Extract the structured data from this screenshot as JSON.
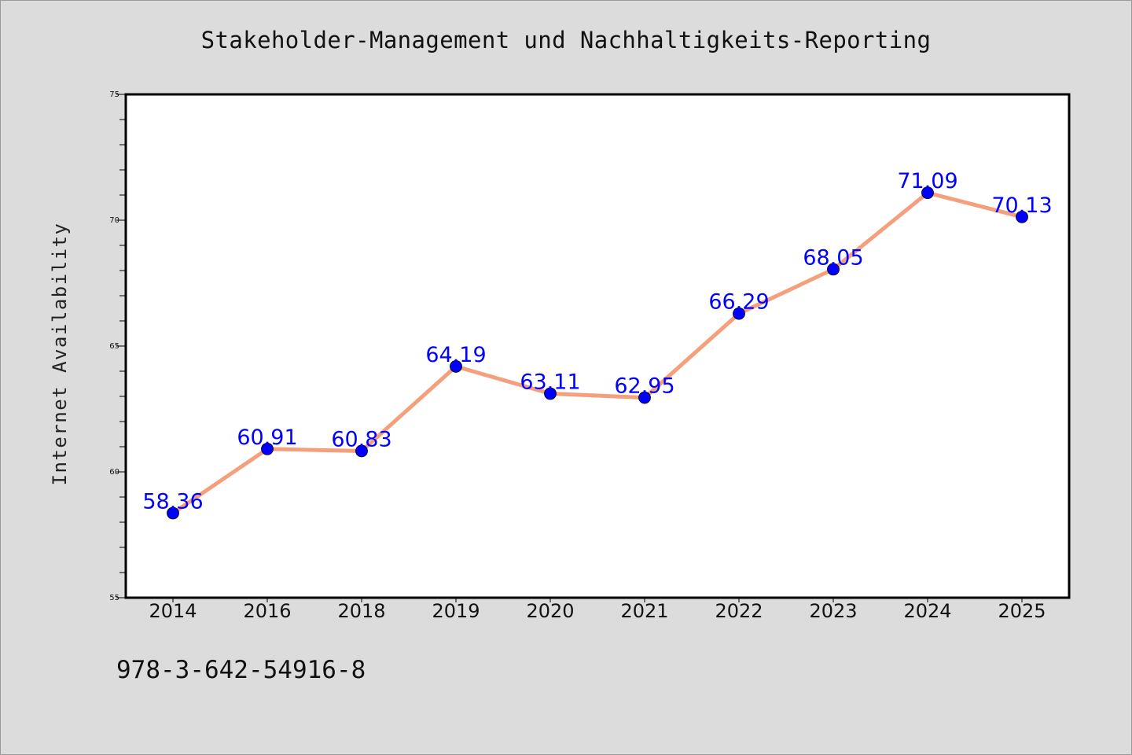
{
  "colors": {
    "background": "#dcdcdc",
    "plot_area": "#ffffff",
    "line": "#f4a07c",
    "marker": "#0000ff",
    "data_label": "#0000ff"
  },
  "isbn": "978-3-642-54916-8",
  "chart_data": {
    "type": "line",
    "title": "Stakeholder-Management und Nachhaltigkeits-Reporting",
    "xlabel": "",
    "ylabel": "Internet Availability",
    "categories": [
      "2014",
      "2016",
      "2018",
      "2019",
      "2020",
      "2021",
      "2022",
      "2023",
      "2024",
      "2025"
    ],
    "series": [
      {
        "values": [
          58.36,
          60.91,
          60.83,
          64.19,
          63.11,
          62.95,
          66.29,
          68.05,
          71.09,
          70.13
        ],
        "labels": [
          "58.36",
          "60.91",
          "60.83",
          "64.19",
          "63.11",
          "62.95",
          "66.29",
          "68.05",
          "71.09",
          "70.13"
        ]
      }
    ],
    "ylim": [
      55,
      75
    ],
    "yticks": [
      55,
      60,
      65,
      70,
      75
    ],
    "grid": false,
    "legend": "none"
  }
}
